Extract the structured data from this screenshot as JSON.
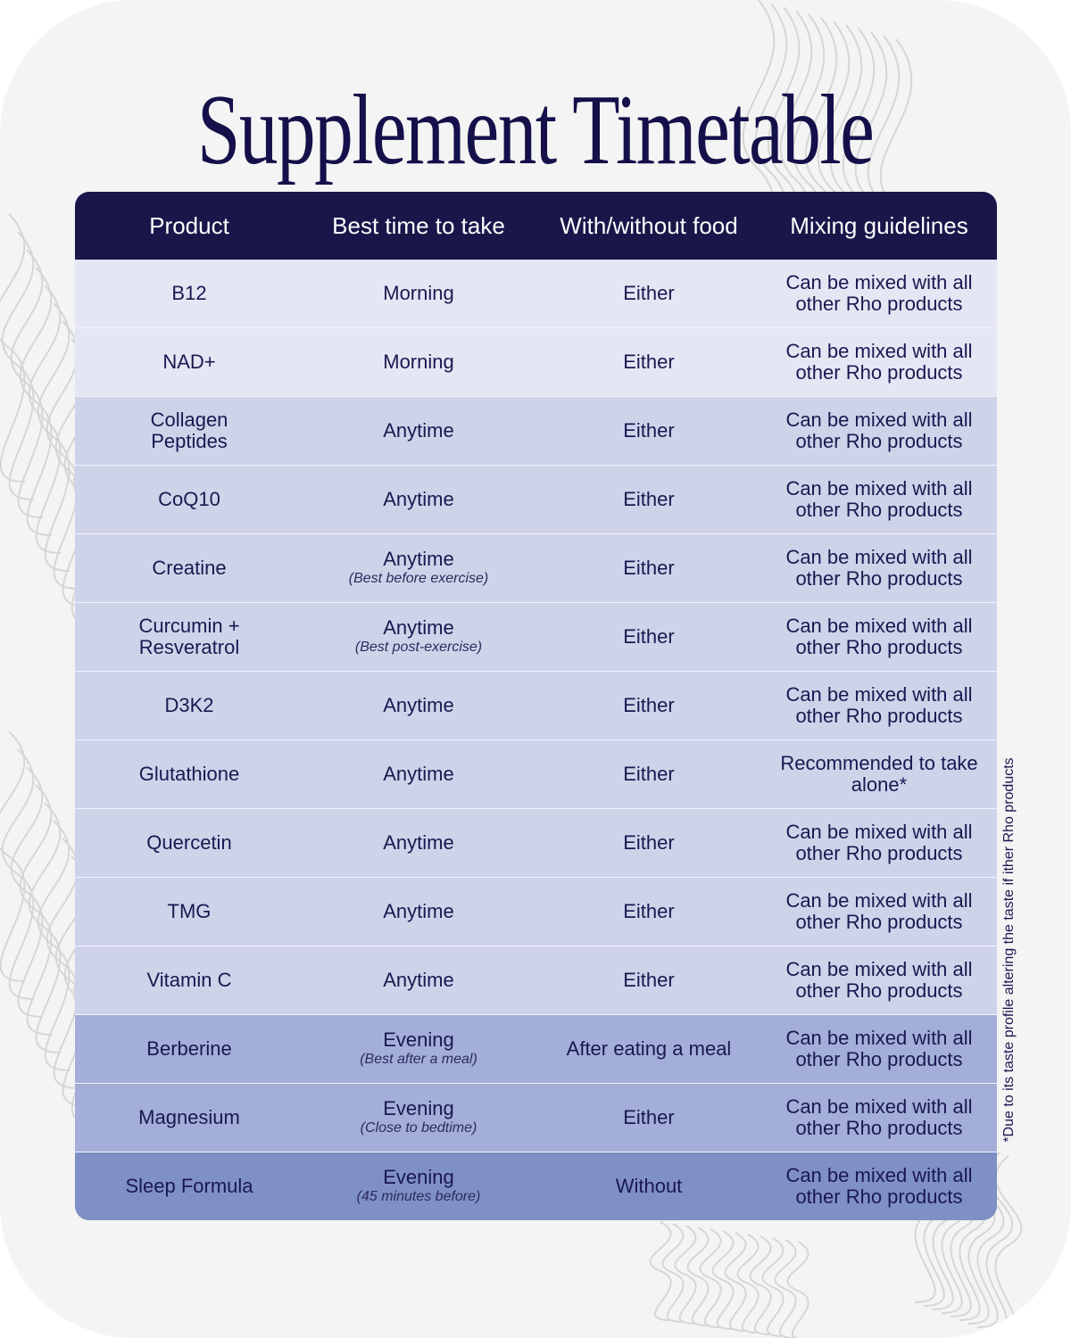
{
  "title": "Supplement Timetable",
  "headers": [
    "Product",
    "Best time to take",
    "With/without food",
    "Mixing guidelines"
  ],
  "rows": [
    {
      "product": "B12",
      "time": "Morning",
      "note": "",
      "food": "Either",
      "mixing": "Can be mixed with all other Rho products",
      "tier": "light"
    },
    {
      "product": "NAD+",
      "time": "Morning",
      "note": "",
      "food": "Either",
      "mixing": "Can be mixed with all other Rho products",
      "tier": "light"
    },
    {
      "product": "Collagen Peptides",
      "time": "Anytime",
      "note": "",
      "food": "Either",
      "mixing": "Can be mixed with all other Rho products",
      "tier": "mid"
    },
    {
      "product": "CoQ10",
      "time": "Anytime",
      "note": "",
      "food": "Either",
      "mixing": "Can be mixed with all other Rho products",
      "tier": "mid"
    },
    {
      "product": "Creatine",
      "time": "Anytime",
      "note": "(Best before exercise)",
      "food": "Either",
      "mixing": "Can be mixed with all other Rho products",
      "tier": "mid"
    },
    {
      "product": "Curcumin + Resveratrol",
      "time": "Anytime",
      "note": "(Best post-exercise)",
      "food": "Either",
      "mixing": "Can be mixed with all other Rho products",
      "tier": "mid"
    },
    {
      "product": "D3K2",
      "time": "Anytime",
      "note": "",
      "food": "Either",
      "mixing": "Can be mixed with all other Rho products",
      "tier": "mid"
    },
    {
      "product": "Glutathione",
      "time": "Anytime",
      "note": "",
      "food": "Either",
      "mixing": "Recommended to take alone*",
      "tier": "mid"
    },
    {
      "product": "Quercetin",
      "time": "Anytime",
      "note": "",
      "food": "Either",
      "mixing": "Can be mixed with all other Rho products",
      "tier": "mid"
    },
    {
      "product": "TMG",
      "time": "Anytime",
      "note": "",
      "food": "Either",
      "mixing": "Can be mixed with all other Rho products",
      "tier": "mid"
    },
    {
      "product": "Vitamin C",
      "time": "Anytime",
      "note": "",
      "food": "Either",
      "mixing": "Can be mixed with all other Rho products",
      "tier": "mid"
    },
    {
      "product": "Berberine",
      "time": "Evening",
      "note": "(Best after a meal)",
      "food": "After eating a meal",
      "mixing": "Can be mixed with all other Rho products",
      "tier": "eve"
    },
    {
      "product": "Magnesium",
      "time": "Evening",
      "note": "(Close to bedtime)",
      "food": "Either",
      "mixing": "Can be mixed with all other Rho products",
      "tier": "eve"
    },
    {
      "product": "Sleep Formula",
      "time": "Evening",
      "note": "(45 minutes before)",
      "food": "Without",
      "mixing": "Can be mixed with all other Rho products",
      "tier": "night"
    }
  ],
  "footnote": "*Due to its taste profile altering the taste if ither Rho products",
  "colors": {
    "header": "#19164a",
    "light": "#e4e6f4",
    "mid": "#ced3ea",
    "eve": "#a3afd9",
    "night": "#7f90c7",
    "text": "#1a1850"
  }
}
